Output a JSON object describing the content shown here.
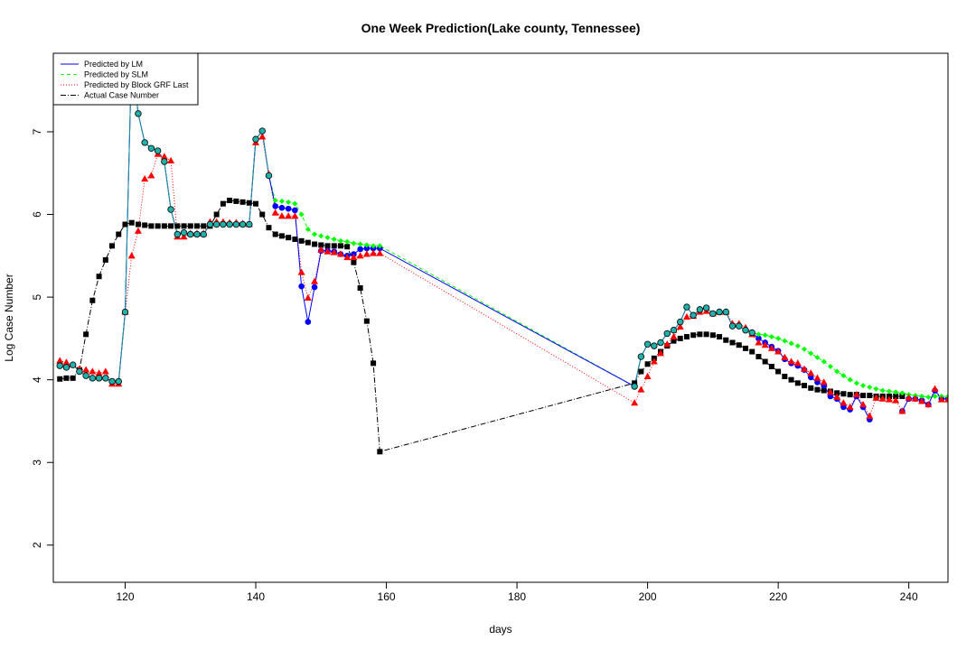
{
  "chart_data": {
    "type": "line",
    "title": "One Week Prediction(Lake county, Tennessee)",
    "xlabel": "days",
    "ylabel": "Log Case Number",
    "xlim": [
      109,
      246
    ],
    "ylim": [
      1.55,
      7.95
    ],
    "x_ticks": [
      120,
      140,
      160,
      180,
      200,
      220,
      240
    ],
    "y_ticks": [
      2,
      3,
      4,
      5,
      6,
      7
    ],
    "legend_position": "top-left",
    "colors": {
      "lm": "#0000ff",
      "slm": "#00ff00",
      "grf": "#ff0000",
      "actual": "#000000",
      "overlap": "#1e90a0"
    },
    "x": [
      110,
      111,
      112,
      113,
      114,
      115,
      116,
      117,
      118,
      119,
      120,
      121,
      122,
      123,
      124,
      125,
      126,
      127,
      128,
      129,
      130,
      131,
      132,
      133,
      134,
      135,
      136,
      137,
      138,
      139,
      140,
      141,
      142,
      143,
      144,
      145,
      146,
      147,
      148,
      149,
      150,
      151,
      152,
      153,
      154,
      155,
      156,
      157,
      158,
      159,
      198,
      199,
      200,
      201,
      202,
      203,
      204,
      205,
      206,
      207,
      208,
      209,
      210,
      211,
      212,
      213,
      214,
      215,
      216,
      217,
      218,
      219,
      220,
      221,
      222,
      223,
      224,
      225,
      226,
      227,
      228,
      229,
      230,
      231,
      232,
      233,
      234,
      235,
      236,
      237,
      238,
      239,
      240,
      241,
      242,
      243,
      244,
      245,
      246
    ],
    "series": [
      {
        "name": "Predicted by LM",
        "marker": "circle",
        "values": [
          4.17,
          4.15,
          4.18,
          4.1,
          4.05,
          4.02,
          4.02,
          4.02,
          3.98,
          3.98,
          4.82,
          7.95,
          7.22,
          6.87,
          6.8,
          6.77,
          6.64,
          6.06,
          5.76,
          5.78,
          5.76,
          5.76,
          5.76,
          5.88,
          5.88,
          5.88,
          5.88,
          5.88,
          5.88,
          5.88,
          6.91,
          7.01,
          6.47,
          6.1,
          6.08,
          6.07,
          6.05,
          5.13,
          4.7,
          5.12,
          5.56,
          5.56,
          5.55,
          5.52,
          5.5,
          5.52,
          5.58,
          5.59,
          5.59,
          5.59,
          3.92,
          4.28,
          4.43,
          4.41,
          4.45,
          4.56,
          4.6,
          4.7,
          4.88,
          4.78,
          4.85,
          4.87,
          4.8,
          4.82,
          4.82,
          4.65,
          4.65,
          4.6,
          4.57,
          4.5,
          4.45,
          4.4,
          4.35,
          4.25,
          4.2,
          4.17,
          4.12,
          4.03,
          3.97,
          3.93,
          3.8,
          3.77,
          3.67,
          3.64,
          3.8,
          3.67,
          3.52,
          null,
          null,
          null,
          null,
          3.62,
          3.77,
          3.77,
          3.75,
          3.7,
          3.87,
          3.77,
          3.77
        ]
      },
      {
        "name": "Predicted by SLM",
        "marker": "diamond",
        "values": [
          4.17,
          4.15,
          4.18,
          4.1,
          4.05,
          4.02,
          4.02,
          4.02,
          3.98,
          3.98,
          4.82,
          7.95,
          7.22,
          6.87,
          6.8,
          6.77,
          6.64,
          6.06,
          5.76,
          5.78,
          5.76,
          5.76,
          5.76,
          5.88,
          5.88,
          5.88,
          5.88,
          5.88,
          5.88,
          5.88,
          6.91,
          7.01,
          6.47,
          6.17,
          6.16,
          6.15,
          6.13,
          6.0,
          5.82,
          5.76,
          5.74,
          5.72,
          5.7,
          5.68,
          5.67,
          5.65,
          5.64,
          5.63,
          5.62,
          5.62,
          3.92,
          4.28,
          4.43,
          4.41,
          4.45,
          4.56,
          4.6,
          4.7,
          4.88,
          4.78,
          4.85,
          4.87,
          4.8,
          4.82,
          4.82,
          4.65,
          4.65,
          4.6,
          4.57,
          4.55,
          4.54,
          4.52,
          4.5,
          4.47,
          4.44,
          4.41,
          4.37,
          4.32,
          4.27,
          4.22,
          4.16,
          4.1,
          4.05,
          4.0,
          3.96,
          3.93,
          3.91,
          3.89,
          3.87,
          3.86,
          3.85,
          3.84,
          3.82,
          3.81,
          3.8,
          3.79,
          3.8,
          3.8,
          3.8
        ]
      },
      {
        "name": "Predicted by Block GRF Last",
        "marker": "triangle",
        "values": [
          4.23,
          4.21,
          4.18,
          4.13,
          4.12,
          4.1,
          4.08,
          4.1,
          3.95,
          3.95,
          4.82,
          5.5,
          5.8,
          6.43,
          6.47,
          6.73,
          6.7,
          6.65,
          5.73,
          5.73,
          5.77,
          5.77,
          5.77,
          5.91,
          5.91,
          5.91,
          5.9,
          5.9,
          5.89,
          5.88,
          6.87,
          6.94,
          6.49,
          6.02,
          5.98,
          5.98,
          5.98,
          5.3,
          4.99,
          5.19,
          5.57,
          5.55,
          5.54,
          5.52,
          5.48,
          5.48,
          5.5,
          5.52,
          5.53,
          5.53,
          3.72,
          3.88,
          4.04,
          4.22,
          4.32,
          4.43,
          4.52,
          4.64,
          4.76,
          4.77,
          4.82,
          4.83,
          4.8,
          4.82,
          4.82,
          4.68,
          4.68,
          4.63,
          4.55,
          4.45,
          4.42,
          4.38,
          4.34,
          4.27,
          4.22,
          4.2,
          4.13,
          4.08,
          4.02,
          3.97,
          3.85,
          3.79,
          3.72,
          3.67,
          3.82,
          3.7,
          3.56,
          3.78,
          3.77,
          3.76,
          3.75,
          3.62,
          3.78,
          3.77,
          3.74,
          3.7,
          3.89,
          3.76,
          3.76
        ]
      },
      {
        "name": "Actual Case Number",
        "marker": "square",
        "values": [
          4.01,
          4.02,
          4.02,
          4.12,
          4.55,
          4.96,
          5.25,
          5.45,
          5.62,
          5.76,
          5.88,
          5.9,
          5.88,
          5.87,
          5.86,
          5.86,
          5.86,
          5.86,
          5.86,
          5.86,
          5.86,
          5.86,
          5.86,
          5.86,
          6.0,
          6.13,
          6.17,
          6.16,
          6.15,
          6.14,
          6.13,
          6.0,
          5.84,
          5.76,
          5.74,
          5.72,
          5.7,
          5.68,
          5.66,
          5.64,
          5.63,
          5.62,
          5.62,
          5.62,
          5.61,
          5.42,
          5.11,
          4.71,
          4.2,
          3.13,
          3.96,
          4.1,
          4.19,
          4.26,
          4.34,
          4.41,
          4.47,
          4.5,
          4.52,
          4.54,
          4.55,
          4.55,
          4.54,
          4.52,
          4.48,
          4.45,
          4.42,
          4.38,
          4.34,
          4.28,
          4.22,
          4.16,
          4.1,
          4.04,
          4.0,
          3.96,
          3.93,
          3.9,
          3.88,
          3.87,
          3.86,
          3.84,
          3.83,
          3.82,
          3.82,
          3.81,
          3.81,
          3.8,
          3.8,
          3.8,
          3.8,
          3.8,
          null,
          null,
          null,
          null,
          null,
          null,
          null
        ]
      }
    ]
  }
}
